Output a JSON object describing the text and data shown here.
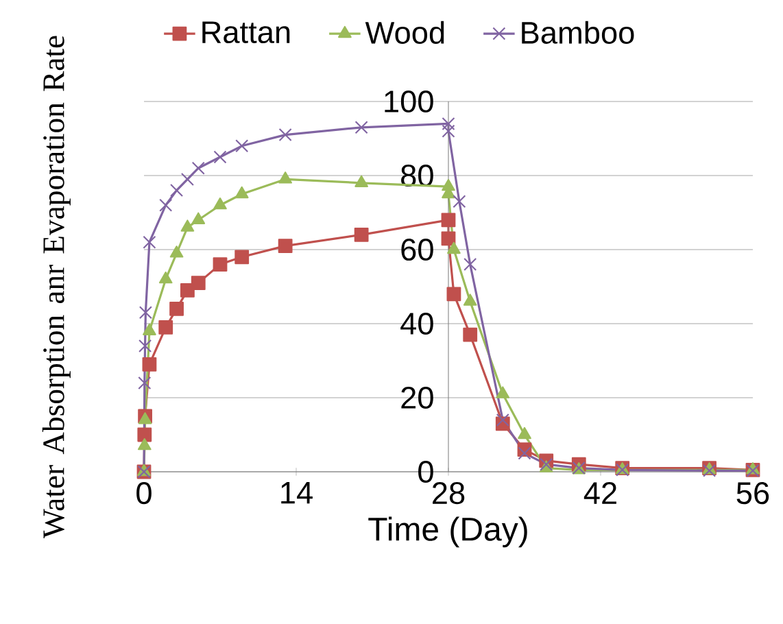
{
  "chart_data": {
    "type": "line",
    "ylabel": "Water Absorption anr Evaporation Rate",
    "xlabel": "Time (Day)",
    "xlim": [
      0,
      56
    ],
    "xticks": [
      0,
      14,
      28,
      42,
      56
    ],
    "ylim": [
      0,
      100
    ],
    "yticks": [
      0,
      20,
      40,
      60,
      80,
      100
    ],
    "grid": "y",
    "legend": "top",
    "series": [
      {
        "name": "Rattan",
        "color": "#c0504d",
        "marker": "square",
        "x": [
          0,
          0.05,
          0.1,
          0.5,
          2,
          3,
          4,
          5,
          7,
          9,
          13,
          20,
          28,
          28,
          28.5,
          30,
          33,
          35,
          37,
          40,
          44,
          52,
          56
        ],
        "values": [
          0,
          10,
          15,
          29,
          39,
          44,
          49,
          51,
          56,
          58,
          61,
          64,
          68,
          63,
          48,
          37,
          13,
          6,
          3,
          2,
          1,
          1,
          0.5
        ]
      },
      {
        "name": "Wood",
        "color": "#9bbb59",
        "marker": "triangle",
        "x": [
          0,
          0.05,
          0.1,
          0.5,
          2,
          3,
          4,
          5,
          7,
          9,
          13,
          20,
          28,
          28,
          28.5,
          30,
          33,
          35,
          37,
          40,
          44,
          52,
          56
        ],
        "values": [
          0,
          7,
          14,
          38,
          52,
          59,
          66,
          68,
          72,
          75,
          79,
          78,
          77,
          75,
          60,
          46,
          21,
          10,
          1,
          0.5,
          0.5,
          0.5,
          0.5
        ]
      },
      {
        "name": "Bamboo",
        "color": "#8064a2",
        "marker": "cross",
        "x": [
          0,
          0.05,
          0.1,
          0.15,
          0.5,
          2,
          3,
          4,
          5,
          7,
          9,
          13,
          20,
          28,
          28,
          29,
          30,
          33,
          35,
          37,
          40,
          44,
          52,
          56
        ],
        "values": [
          0,
          24,
          34,
          43,
          62,
          72,
          76,
          79,
          82,
          85,
          88,
          91,
          93,
          94,
          92,
          73,
          56,
          14,
          5,
          2,
          1,
          0.5,
          0.3,
          0.3
        ]
      }
    ]
  }
}
